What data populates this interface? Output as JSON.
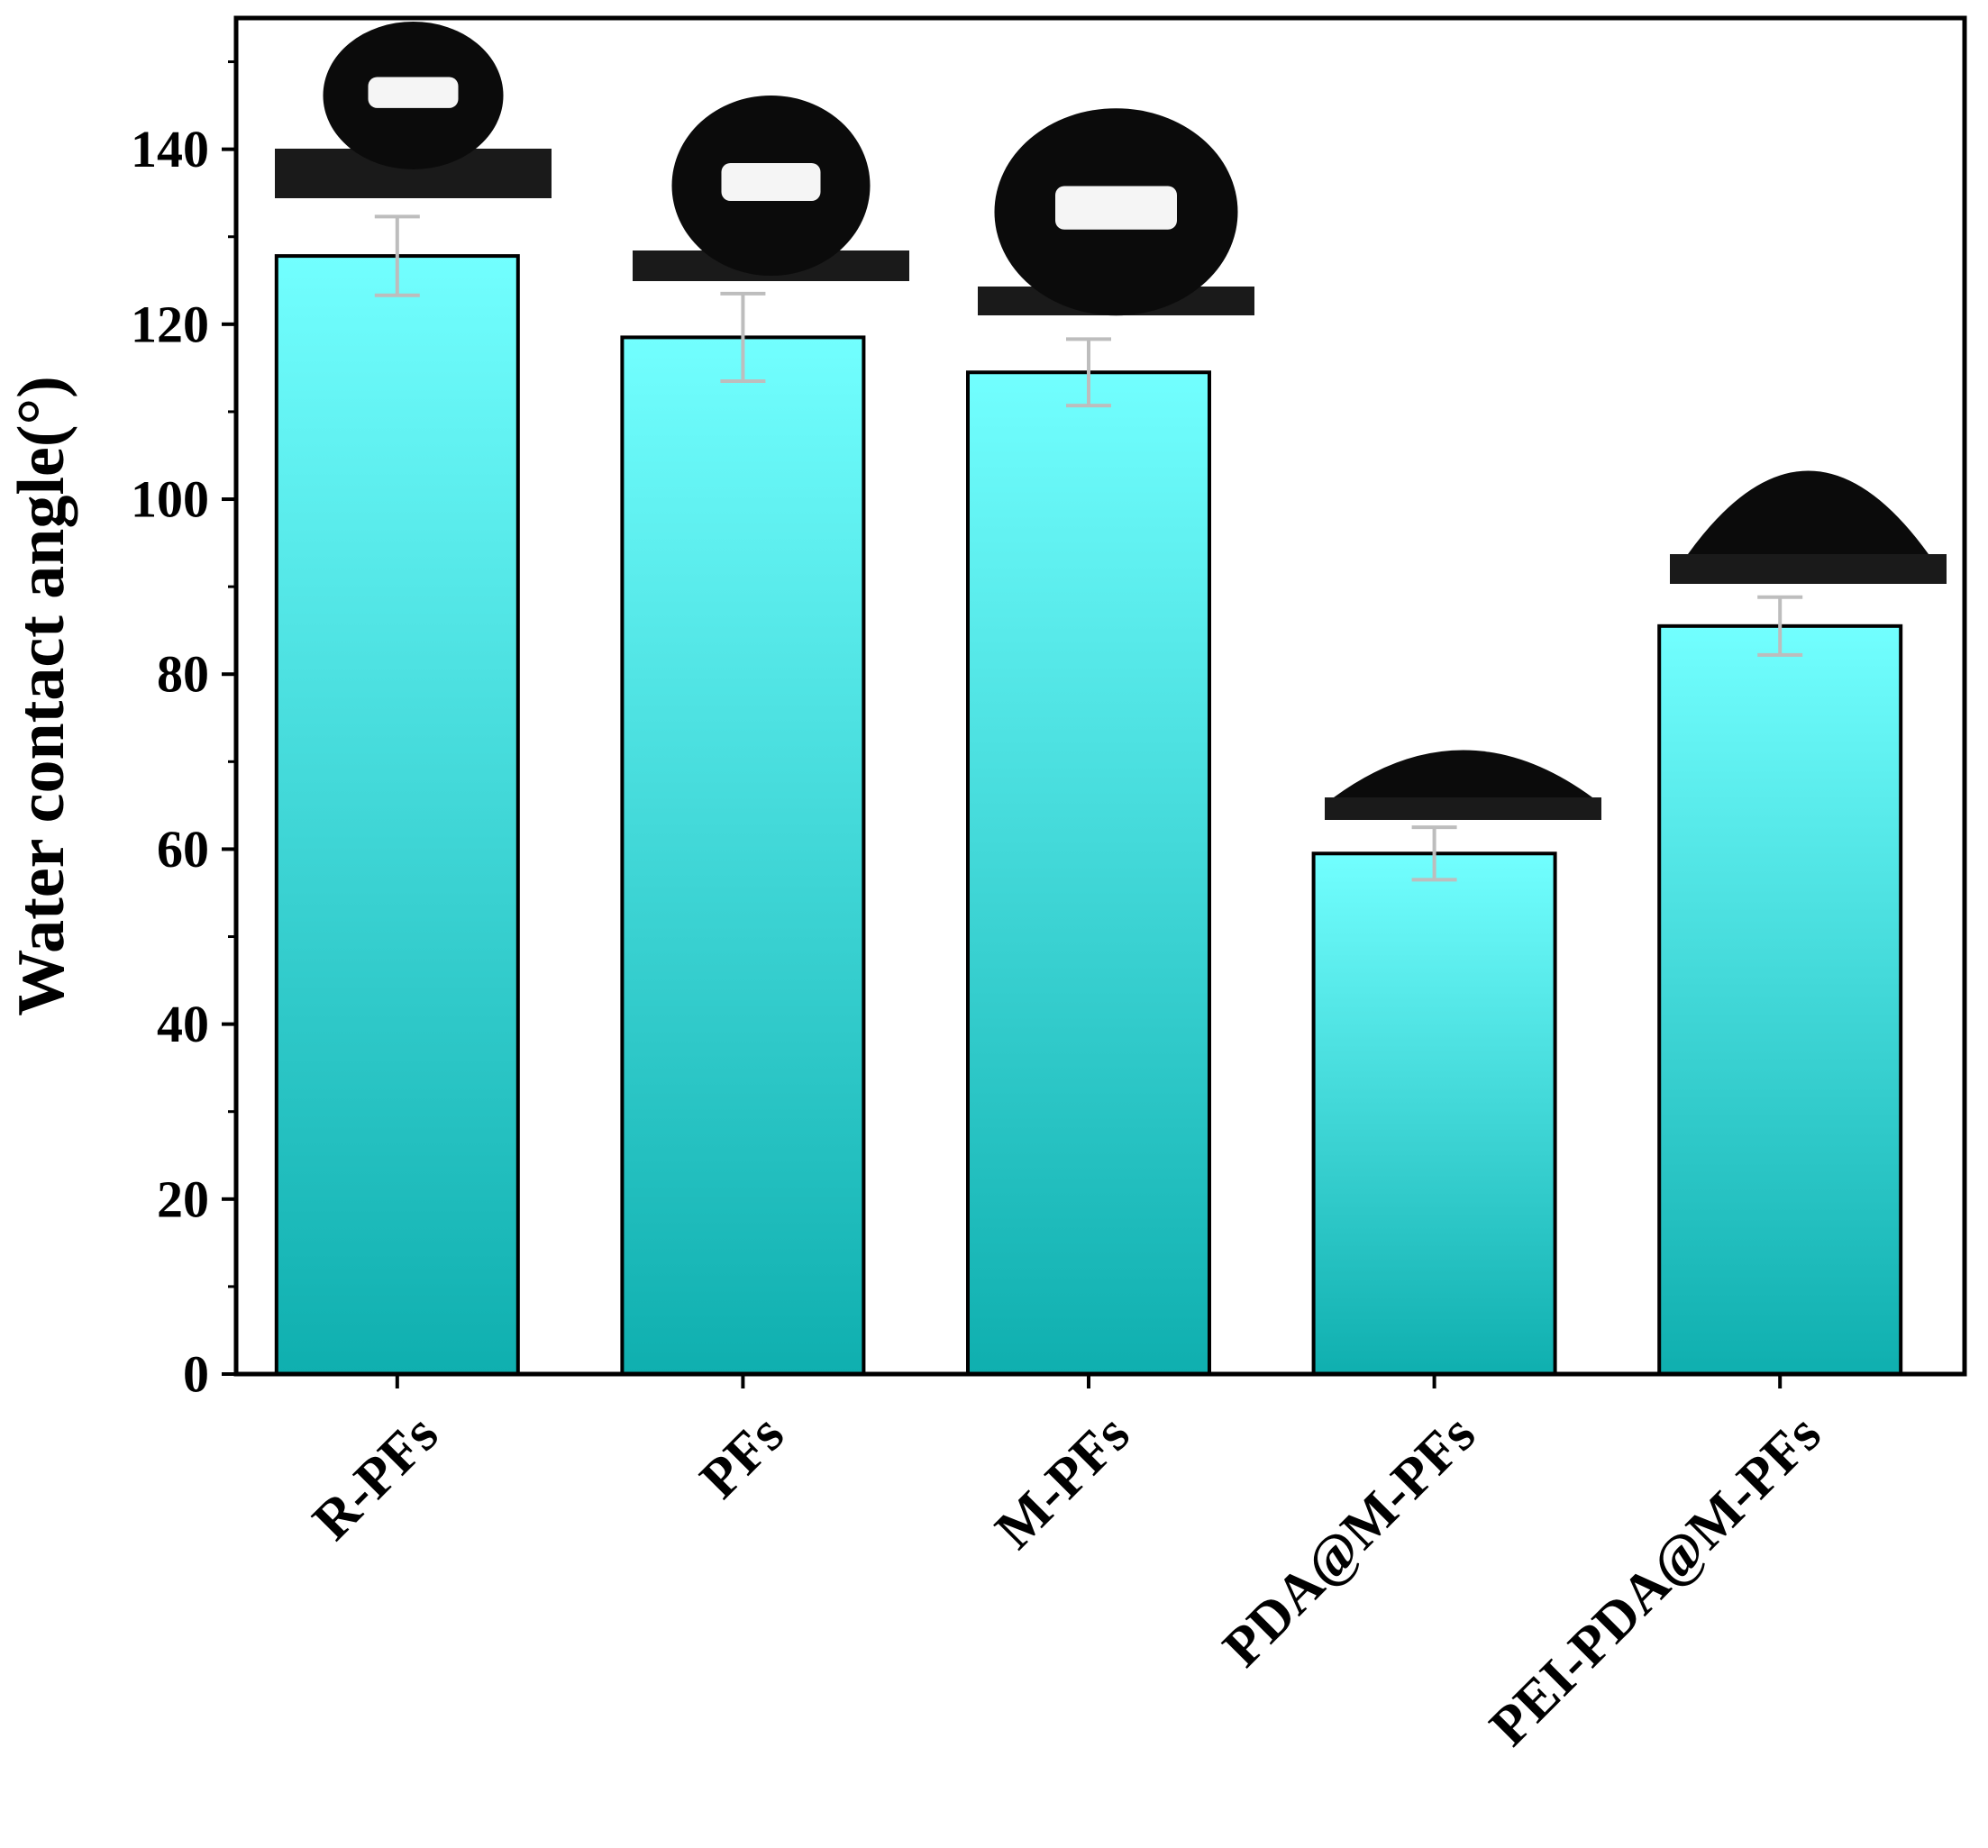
{
  "chart_data": {
    "type": "bar",
    "ylabel": "Water contact angle(°)",
    "xlabel": "",
    "title": "",
    "categories": [
      "R-PFs",
      "PFs",
      "M-PFs",
      "PDA@M-PFs",
      "PEI-PDA@M-PFs"
    ],
    "values": [
      127.8,
      118.5,
      114.5,
      59.5,
      85.5
    ],
    "errors": [
      4.5,
      5.0,
      3.8,
      3.0,
      3.3
    ],
    "insets": [
      {
        "contact_angle_shape": "high-sphere"
      },
      {
        "contact_angle_shape": "sphere"
      },
      {
        "contact_angle_shape": "sphere"
      },
      {
        "contact_angle_shape": "flat-cap"
      },
      {
        "contact_angle_shape": "low-dome"
      }
    ],
    "ylim": [
      0,
      155
    ],
    "yticks": [
      0,
      20,
      40,
      60,
      80,
      100,
      120,
      140
    ],
    "grid": false,
    "legend": "none",
    "colors": {
      "bar_top": "#72FFFF",
      "bar_bottom": "#0FAFAF",
      "bar_edge": "#000000",
      "error_bar": "#BDBDBD",
      "axis": "#000000"
    }
  }
}
